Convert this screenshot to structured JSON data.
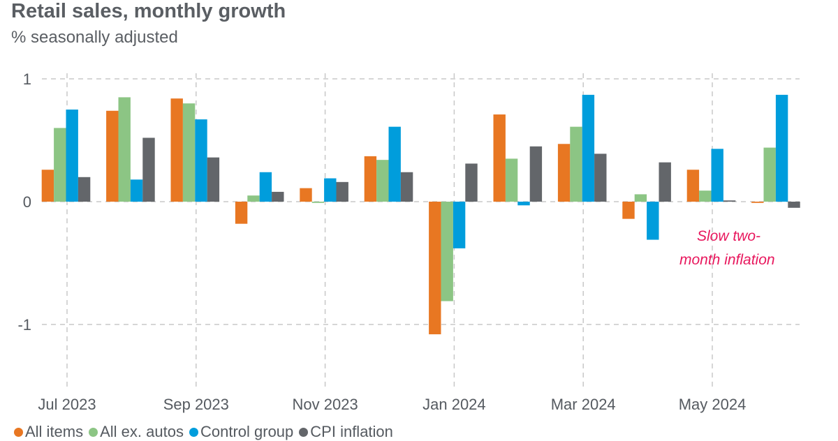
{
  "chart_data": {
    "type": "bar",
    "title": "Retail sales, monthly growth",
    "subtitle": "% seasonally adjusted",
    "categories": [
      "Jul 2023",
      "Aug 2023",
      "Sep 2023",
      "Oct 2023",
      "Nov 2023",
      "Dec 2023",
      "Jan 2024",
      "Feb 2024",
      "Mar 2024",
      "Apr 2024",
      "May 2024",
      "Jun 2024"
    ],
    "x_tick_labels": [
      "Jul 2023",
      "Sep 2023",
      "Nov 2023",
      "Jan 2024",
      "Mar 2024",
      "May 2024"
    ],
    "y_ticks": [
      1,
      0,
      -1
    ],
    "ylim": [
      -1.55,
      1.05
    ],
    "grid": true,
    "legend_placement": "bottom",
    "series": [
      {
        "name": "All items",
        "color": "#e87722",
        "values": [
          0.26,
          0.74,
          0.84,
          -0.18,
          0.11,
          0.37,
          -1.08,
          0.71,
          0.47,
          -0.14,
          0.26,
          -0.01
        ]
      },
      {
        "name": "All ex. autos",
        "color": "#8cc584",
        "values": [
          0.6,
          0.85,
          0.8,
          0.05,
          -0.01,
          0.34,
          -0.81,
          0.35,
          0.61,
          0.06,
          0.09,
          0.44
        ]
      },
      {
        "name": "Control group",
        "color": "#009ddc",
        "values": [
          0.75,
          0.18,
          0.67,
          0.24,
          0.19,
          0.61,
          -0.38,
          -0.03,
          0.87,
          -0.31,
          0.43,
          0.87
        ]
      },
      {
        "name": "CPI inflation",
        "color": "#63666a",
        "values": [
          0.2,
          0.52,
          0.36,
          0.08,
          0.16,
          0.24,
          0.31,
          0.45,
          0.39,
          0.32,
          0.01,
          -0.05
        ]
      }
    ],
    "annotations": [
      {
        "text_line1": "Slow two-",
        "text_line2": "month inflation",
        "color": "#e8175d"
      }
    ]
  }
}
